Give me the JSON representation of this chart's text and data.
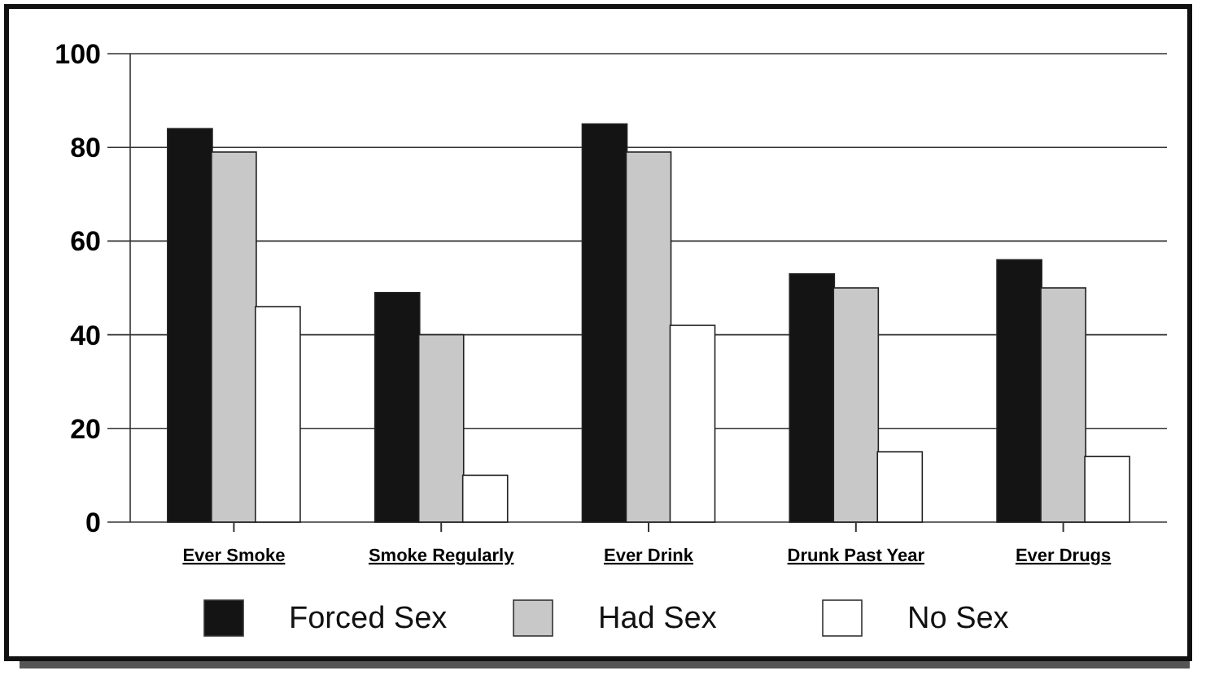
{
  "chart_data": {
    "type": "bar",
    "categories": [
      "Ever Smoke",
      "Smoke Regularly",
      "Ever Drink",
      "Drunk Past Year",
      "Ever Drugs"
    ],
    "series": [
      {
        "name": "Forced Sex",
        "color": "#141414",
        "values": [
          84,
          49,
          85,
          53,
          56
        ]
      },
      {
        "name": "Had Sex",
        "color": "#c8c8c8",
        "values": [
          79,
          40,
          79,
          50,
          50
        ]
      },
      {
        "name": "No Sex",
        "color": "#ffffff",
        "values": [
          46,
          10,
          42,
          15,
          14
        ]
      }
    ],
    "ylim": [
      0,
      100
    ],
    "yticks": [
      0,
      20,
      40,
      60,
      80,
      100
    ],
    "grid": "y",
    "legend": "bottom"
  }
}
